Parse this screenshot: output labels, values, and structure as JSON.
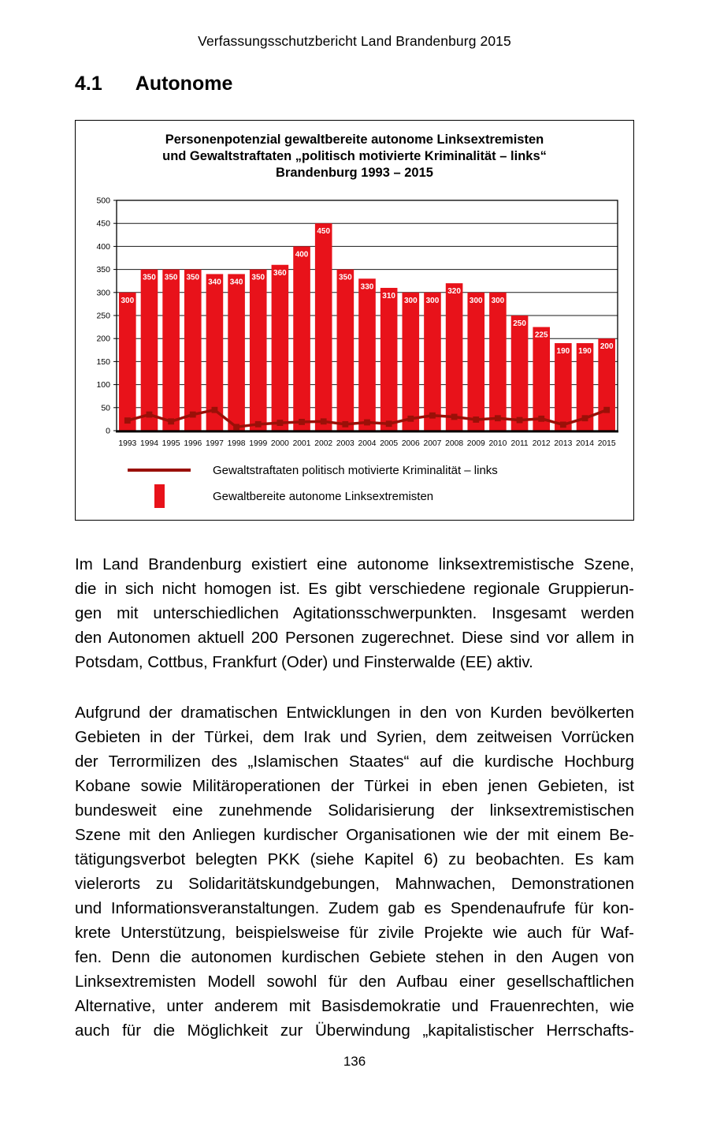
{
  "page": {
    "header": "Verfassungsschutzbericht Land Brandenburg 2015",
    "section_number": "4.1",
    "section_title": "Autonome",
    "page_number": "136"
  },
  "chart_data": {
    "type": "bar",
    "title_lines": [
      "Personenpotenzial gewaltbereite autonome Linksextremisten",
      "und Gewaltstraftaten „politisch motivierte Kriminalität – links“",
      "Brandenburg 1993 – 2015"
    ],
    "categories": [
      "1993",
      "1994",
      "1995",
      "1996",
      "1997",
      "1998",
      "1999",
      "2000",
      "2001",
      "2002",
      "2003",
      "2004",
      "2005",
      "2006",
      "2007",
      "2008",
      "2009",
      "2010",
      "2011",
      "2012",
      "2013",
      "2014",
      "2015"
    ],
    "series": [
      {
        "name": "Gewaltbereite autonome Linksextremisten",
        "type": "bar",
        "color": "#e8121a",
        "label_color": "#ffffff",
        "values": [
          300,
          350,
          350,
          350,
          340,
          340,
          350,
          360,
          400,
          450,
          350,
          330,
          310,
          300,
          300,
          320,
          300,
          300,
          250,
          225,
          190,
          190,
          200
        ]
      },
      {
        "name": "Gewaltstraftaten politisch motivierte Kriminalität – links",
        "type": "line",
        "color": "#9a1008",
        "values": [
          22,
          35,
          20,
          35,
          45,
          8,
          14,
          17,
          19,
          20,
          14,
          18,
          15,
          26,
          33,
          30,
          24,
          27,
          23,
          26,
          13,
          27,
          45
        ]
      }
    ],
    "ylim": [
      0,
      500
    ],
    "ytick_step": 50,
    "grid": true,
    "legend_position": "bottom",
    "legend": [
      {
        "symbol": "line-with-square-marker",
        "label": "Gewaltstraftaten politisch motivierte Kriminalität – links"
      },
      {
        "symbol": "red-bar",
        "label": "Gewaltbereite autonome Linksextremisten"
      }
    ]
  },
  "paragraphs": [
    {
      "justify_last": false,
      "lines": [
        "Im Land Brandenburg existiert eine autonome linksextremistische Szene,",
        "die in sich nicht homogen ist. Es gibt verschiedene regionale Gruppierun-",
        "gen mit unterschiedlichen Agitationsschwerpunkten. Insgesamt werden",
        "den Autonomen aktuell 200 Personen zugerechnet. Diese sind vor allem in",
        "Potsdam, Cottbus, Frankfurt (Oder) und Finsterwalde (EE) aktiv."
      ]
    },
    {
      "justify_last": true,
      "lines": [
        "Aufgrund der dramatischen Entwicklungen in den von Kurden bevölkerten",
        "Gebieten in der Türkei, dem Irak und Syrien, dem zeitweisen Vorrücken",
        "der Terrormilizen des „Islamischen Staates“ auf die kurdische Hochburg",
        "Kobane sowie Militäroperationen der Türkei in eben jenen Gebieten, ist",
        "bundesweit eine zunehmende Solidarisierung der linksextremistischen",
        "Szene mit den Anliegen kurdischer Organisationen wie der mit einem Be-",
        "tätigungsverbot belegten PKK (siehe Kapitel 6) zu beobachten. Es kam",
        "vielerorts zu Solidaritätskundgebungen, Mahnwachen, Demonstrationen",
        "und Informationsveranstaltungen. Zudem gab es Spendenaufrufe für kon-",
        "krete Unterstützung, beispielsweise für zivile Projekte wie auch für Waf-",
        "fen. Denn die autonomen kurdischen Gebiete stehen in den Augen von",
        "Linksextremisten Modell sowohl für den Aufbau einer gesellschaftlichen",
        "Alternative, unter anderem mit Basisdemokratie und Frauenrechten, wie",
        "auch für die Möglichkeit zur Überwindung „kapitalistischer Herrschafts-"
      ]
    }
  ]
}
